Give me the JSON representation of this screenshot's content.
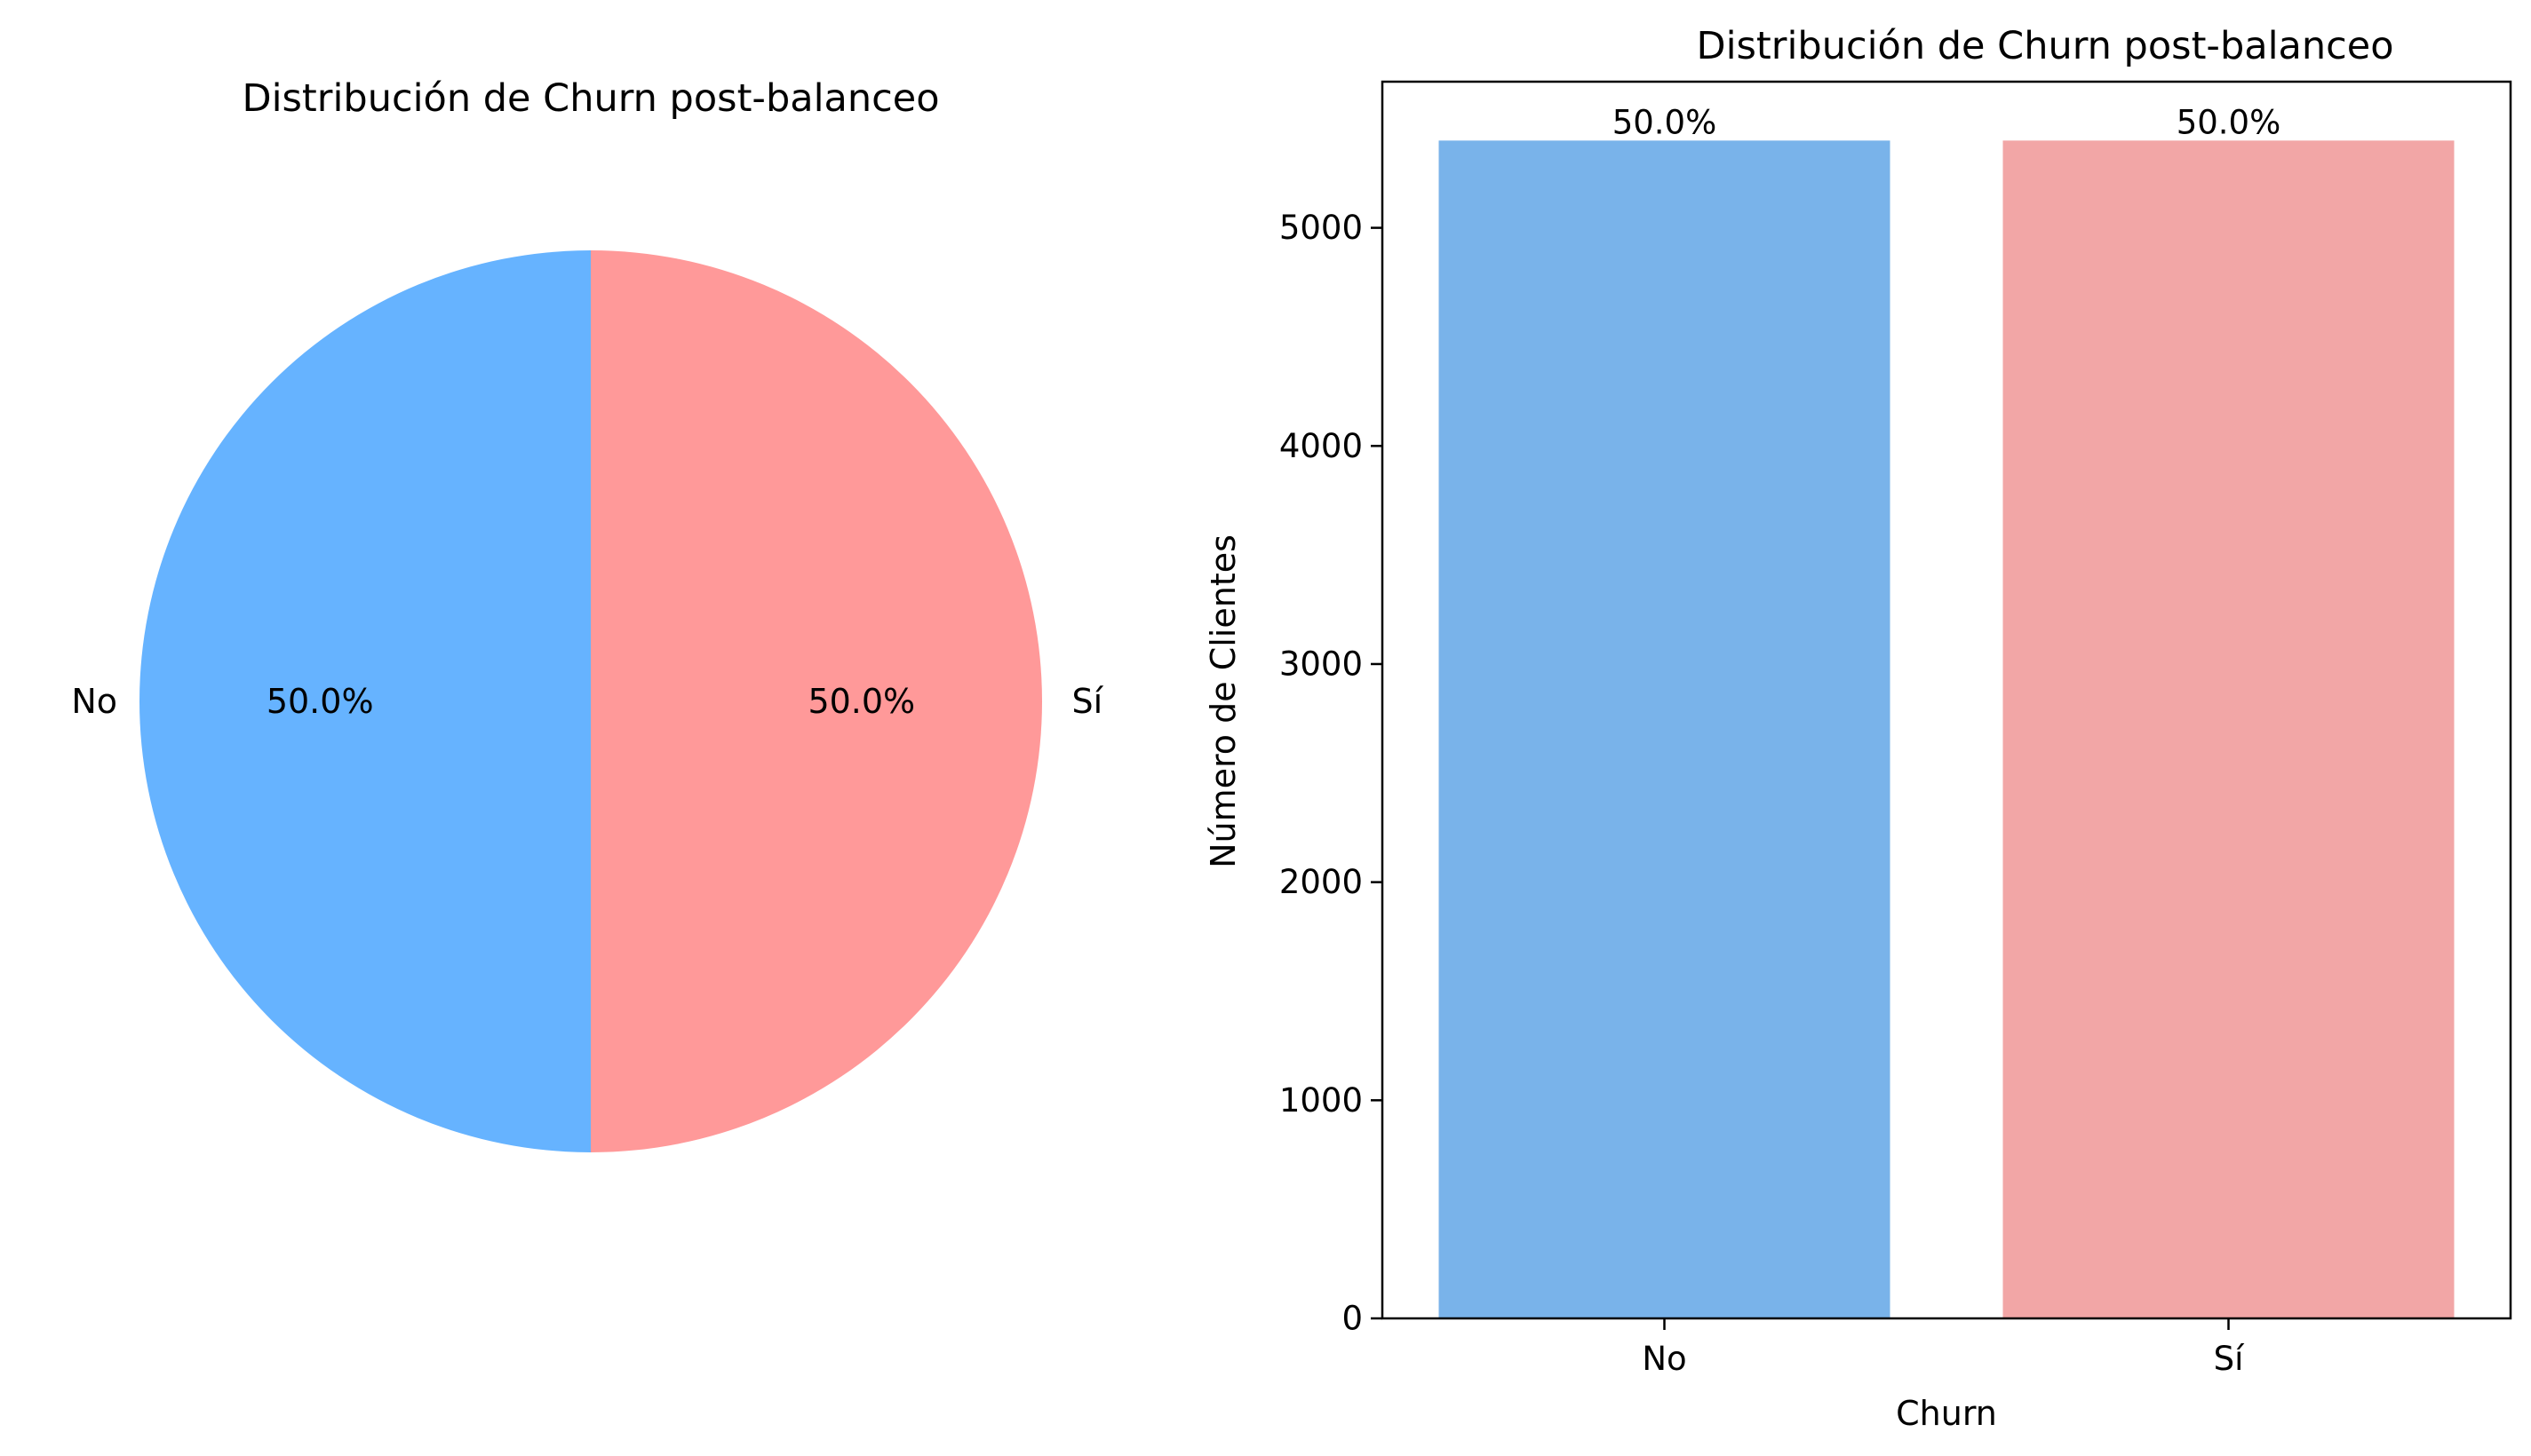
{
  "chart_data": [
    {
      "type": "pie",
      "title": "Distribución de Churn post-balanceo",
      "labels": [
        "No",
        "Sí"
      ],
      "values": [
        50.0,
        50.0
      ],
      "autopct_labels": [
        "50.0%",
        "50.0%"
      ],
      "colors": [
        "#66b3ff",
        "#ff9999"
      ],
      "start_angle_deg": 90,
      "direction": "counterclockwise"
    },
    {
      "type": "bar",
      "title": "Distribución de Churn post-balanceo",
      "xlabel": "Churn",
      "ylabel": "Número de Clientes",
      "categories": [
        "No",
        "Sí"
      ],
      "values": [
        5400,
        5400
      ],
      "bar_labels": [
        "50.0%",
        "50.0%"
      ],
      "colors": [
        "#79b3ea",
        "#f2a6a6"
      ],
      "ylim": [
        0,
        5670
      ],
      "yticks": [
        0,
        1000,
        2000,
        3000,
        4000,
        5000
      ],
      "ytick_labels": [
        "0",
        "1000",
        "2000",
        "3000",
        "4000",
        "5000"
      ],
      "grid": false
    }
  ]
}
